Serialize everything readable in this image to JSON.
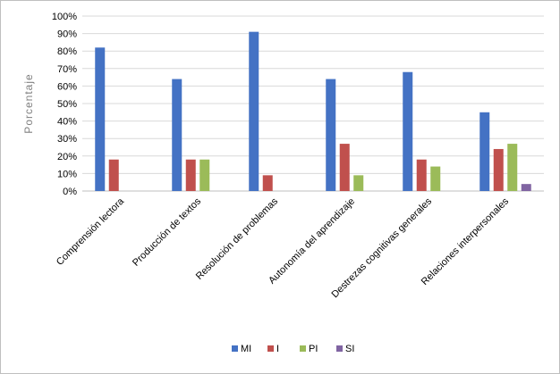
{
  "chart_data": {
    "type": "bar",
    "title": "",
    "xlabel": "",
    "ylabel": "Porcentaje",
    "ylim": [
      0,
      100
    ],
    "yticks": [
      "0%",
      "10%",
      "20%",
      "30%",
      "40%",
      "50%",
      "60%",
      "70%",
      "80%",
      "90%",
      "100%"
    ],
    "categories": [
      "Comprensión lectora",
      "Producción de textos",
      "Resolución de problemas",
      "Autonomía del aprendizaje",
      "Destrezas cognitivas generales",
      "Relaciones interpersonales"
    ],
    "series": [
      {
        "name": "MI",
        "color": "#4472C4",
        "values": [
          82,
          64,
          91,
          64,
          68,
          45
        ]
      },
      {
        "name": "I",
        "color": "#C0504D",
        "values": [
          18,
          18,
          9,
          27,
          18,
          24
        ]
      },
      {
        "name": "PI",
        "color": "#9BBB59",
        "values": [
          0,
          18,
          0,
          9,
          14,
          27
        ]
      },
      {
        "name": "SI",
        "color": "#8064A2",
        "values": [
          0,
          0,
          0,
          0,
          0,
          4
        ]
      }
    ],
    "grid": true,
    "legend_position": "bottom"
  }
}
